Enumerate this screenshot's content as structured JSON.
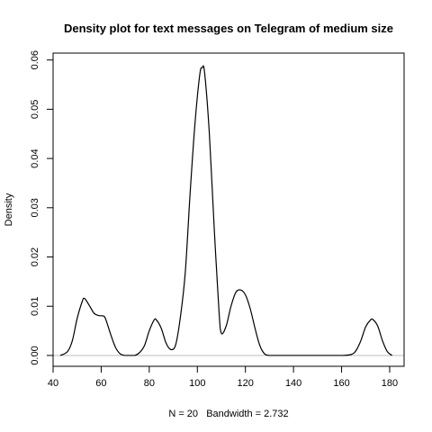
{
  "chart_data": {
    "type": "line",
    "title": "Density plot for text messages on Telegram of medium size",
    "xlabel": "N = 20   Bandwidth = 2.732",
    "ylabel": "Density",
    "xlim": [
      40,
      186
    ],
    "ylim": [
      -0.0022,
      0.0614
    ],
    "x_ticks": [
      40,
      60,
      80,
      100,
      120,
      140,
      160,
      180
    ],
    "y_ticks": [
      0.0,
      0.01,
      0.02,
      0.03,
      0.04,
      0.05,
      0.06
    ],
    "y_tick_labels": [
      "0.00",
      "0.01",
      "0.02",
      "0.03",
      "0.04",
      "0.05",
      "0.06"
    ],
    "grid": false,
    "baseline": 0,
    "series": [
      {
        "x": [
          43,
          46,
          48,
          50,
          52,
          53,
          55,
          57,
          59,
          61,
          62,
          64,
          66,
          68,
          70,
          72,
          74,
          76,
          78,
          80,
          82,
          83,
          85,
          87,
          89,
          91,
          93,
          95,
          97,
          99,
          101,
          102,
          103,
          105,
          107,
          109,
          110,
          112,
          114,
          116,
          118,
          120,
          122,
          124,
          126,
          128,
          130,
          132,
          140,
          150,
          160,
          164,
          166,
          168,
          170,
          172,
          173,
          175,
          177,
          179,
          181
        ],
        "y": [
          0.0,
          0.0008,
          0.003,
          0.0075,
          0.0108,
          0.0116,
          0.0102,
          0.0086,
          0.0081,
          0.008,
          0.0072,
          0.0042,
          0.0016,
          0.0003,
          0.0,
          0.0,
          0.0,
          0.0006,
          0.002,
          0.005,
          0.0072,
          0.0072,
          0.0055,
          0.0025,
          0.0012,
          0.0022,
          0.008,
          0.017,
          0.033,
          0.047,
          0.057,
          0.0584,
          0.0575,
          0.045,
          0.026,
          0.009,
          0.0045,
          0.006,
          0.01,
          0.0128,
          0.0133,
          0.0123,
          0.0095,
          0.0055,
          0.002,
          0.0003,
          0.0,
          0.0,
          0.0,
          0.0,
          0.0,
          0.0002,
          0.001,
          0.003,
          0.0058,
          0.0072,
          0.0073,
          0.006,
          0.003,
          0.0008,
          0.0
        ]
      }
    ]
  }
}
